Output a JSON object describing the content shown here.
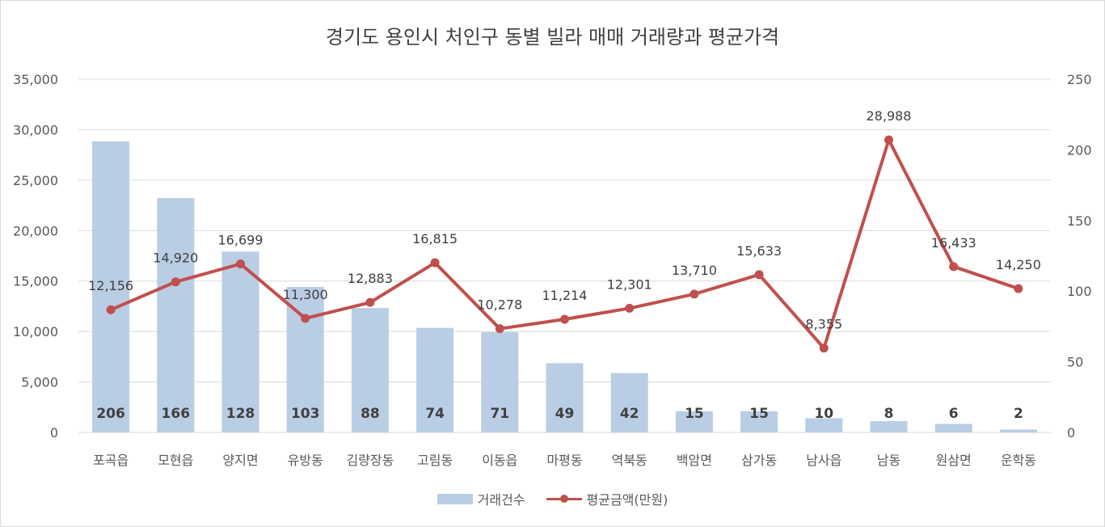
{
  "chart_data": {
    "type": "bar+line",
    "title": "경기도 용인시 처인구 동별 빌라 매매 거래량과 평균가격",
    "categories": [
      "포곡읍",
      "모현읍",
      "양지면",
      "유방동",
      "김량장동",
      "고림동",
      "이동읍",
      "마평동",
      "역북동",
      "백암면",
      "삼가동",
      "남사읍",
      "남동",
      "원삼면",
      "운학동"
    ],
    "series": [
      {
        "name": "거래건수",
        "type": "bar",
        "axis": "left",
        "color": "#b9cde5",
        "values": [
          206,
          166,
          128,
          103,
          88,
          74,
          71,
          49,
          42,
          15,
          15,
          10,
          8,
          6,
          2
        ],
        "labels": [
          "206",
          "166",
          "128",
          "103",
          "88",
          "74",
          "71",
          "49",
          "42",
          "15",
          "15",
          "10",
          "8",
          "6",
          "2"
        ]
      },
      {
        "name": "평균금액(만원)",
        "type": "line",
        "axis": "right",
        "color": "#c0504d",
        "values": [
          12156,
          14920,
          16699,
          11300,
          12883,
          16815,
          10278,
          11214,
          12301,
          13710,
          15633,
          8355,
          28988,
          16433,
          14250
        ],
        "labels": [
          "12,156",
          "14,920",
          "16,699",
          "11,300",
          "12,883",
          "16,815",
          "10,278",
          "11,214",
          "12,301",
          "13,710",
          "15,633",
          "8,355",
          "28,988",
          "16,433",
          "14,250"
        ]
      }
    ],
    "left_axis": {
      "ylim": [
        0,
        35000
      ],
      "ticks": [
        "0",
        "5,000",
        "10,000",
        "15,000",
        "20,000",
        "25,000",
        "30,000",
        "35,000"
      ]
    },
    "right_axis": {
      "ylim": [
        0,
        250
      ],
      "ticks": [
        "0",
        "50",
        "100",
        "150",
        "200",
        "250"
      ]
    },
    "grid": true,
    "legend_position": "bottom"
  }
}
